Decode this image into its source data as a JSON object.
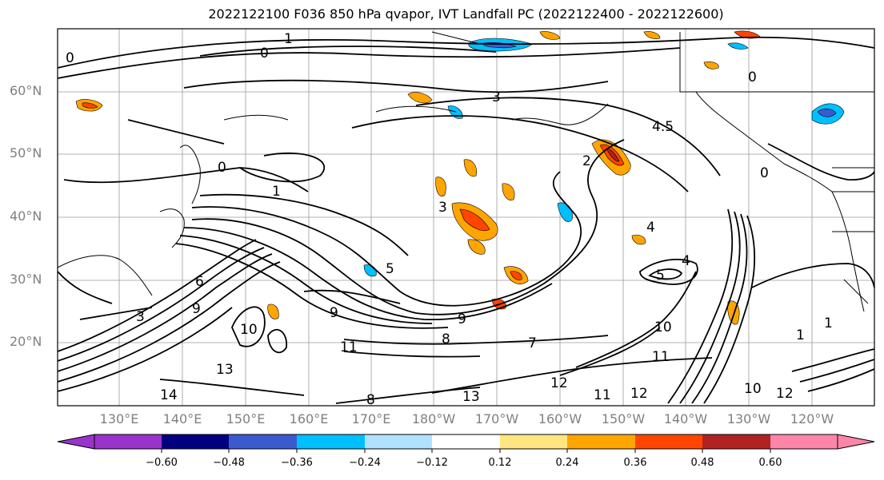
{
  "title": "2022122100 F036 850 hPa qvapor, IVT Landfall PC (2022122400 - 2022122600)",
  "map": {
    "lat_labels": [
      "60°N",
      "50°N",
      "40°N",
      "30°N",
      "20°N"
    ],
    "lon_labels": [
      "130°E",
      "140°E",
      "150°E",
      "160°E",
      "170°E",
      "180°W",
      "170°W",
      "160°W",
      "150°W",
      "140°W",
      "130°W",
      "120°W"
    ],
    "contour_labels": [
      "1",
      "0",
      "3",
      "4.5",
      "2",
      "0",
      "0",
      "1",
      "4",
      "4",
      "5",
      "5",
      "6",
      "3",
      "9",
      "9",
      "9",
      "8",
      "10",
      "10",
      "11",
      "11",
      "11",
      "12",
      "12",
      "12",
      "13",
      "13",
      "14",
      "7",
      "8",
      "10",
      "1",
      "0",
      "3",
      "1",
      "0"
    ],
    "grid": true
  },
  "colorbar": {
    "colors": [
      "#9933cc",
      "#000080",
      "#3a5bd0",
      "#00bfff",
      "#b0e2ff",
      "#ffffff",
      "#ffe680",
      "#ffa500",
      "#ff4500",
      "#b22222",
      "#ff85a8"
    ],
    "tick_labels": [
      "−0.60",
      "−0.48",
      "−0.36",
      "−0.24",
      "−0.12",
      "0.12",
      "0.24",
      "0.36",
      "0.48",
      "0.60"
    ],
    "extend": "both"
  }
}
